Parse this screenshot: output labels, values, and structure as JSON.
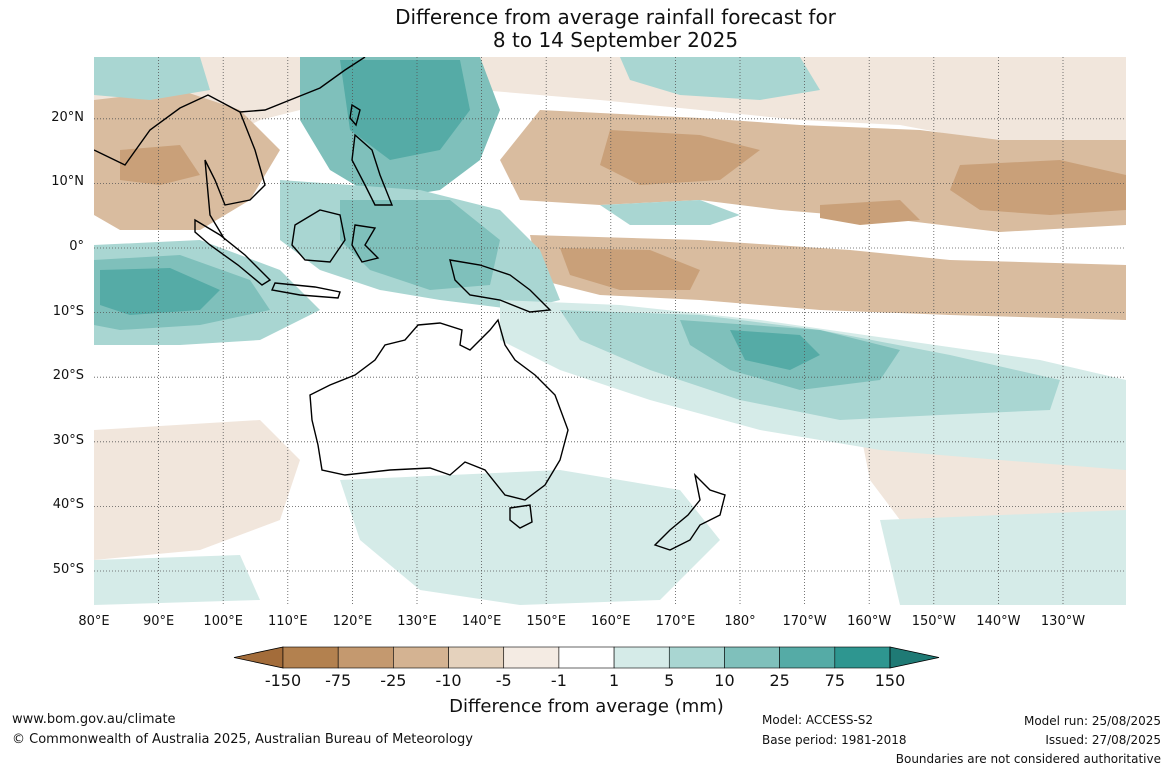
{
  "title_line1": "Difference from average rainfall forecast for",
  "title_line2": "8 to 14 September 2025",
  "lat_labels": [
    "20°N",
    "10°N",
    "0°",
    "10°S",
    "20°S",
    "30°S",
    "40°S",
    "50°S"
  ],
  "lon_labels": [
    "80°E",
    "90°E",
    "100°E",
    "110°E",
    "120°E",
    "130°E",
    "140°E",
    "150°E",
    "160°E",
    "170°E",
    "180°",
    "170°W",
    "160°W",
    "150°W",
    "140°W",
    "130°W"
  ],
  "colorbar": {
    "labels": [
      "-150",
      "-75",
      "-25",
      "-10",
      "-5",
      "-1",
      "1",
      "5",
      "10",
      "25",
      "75",
      "150"
    ],
    "colors": [
      "#a36c3a",
      "#b3814f",
      "#c4996f",
      "#d4b392",
      "#e5d2bd",
      "#f4ebe3",
      "#ffffff",
      "#d5ebe8",
      "#a9d6d2",
      "#7fc0bb",
      "#55aba6",
      "#2e9690",
      "#1f7a75"
    ],
    "title": "Difference from average (mm)"
  },
  "footer": {
    "website": "www.bom.gov.au/climate",
    "copyright": "© Commonwealth of Australia 2025, Australian Bureau of Meteorology",
    "model": "Model: ACCESS-S2",
    "base_period": "Base period: 1981-2018",
    "model_run": "Model run: 25/08/2025",
    "issued": "Issued: 27/08/2025",
    "disclaimer": "Boundaries are not considered authoritative"
  }
}
